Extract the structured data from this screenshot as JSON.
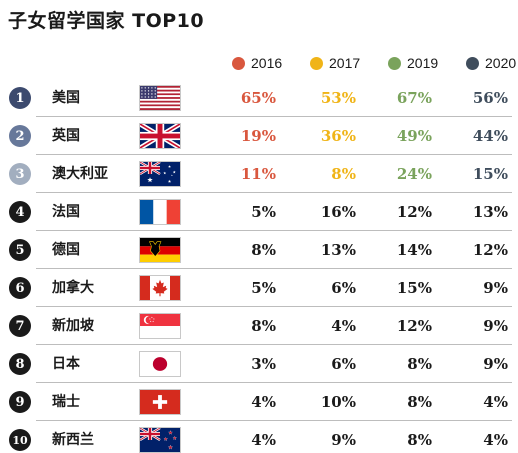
{
  "chart_data": {
    "type": "table",
    "title": "子女留学国家 TOP10",
    "series": [
      {
        "name": "2016",
        "color": "#d9573e",
        "values": [
          65,
          19,
          11,
          5,
          8,
          5,
          8,
          3,
          4,
          4
        ]
      },
      {
        "name": "2017",
        "color": "#f0b417",
        "values": [
          53,
          36,
          8,
          16,
          13,
          6,
          4,
          6,
          10,
          9
        ]
      },
      {
        "name": "2019",
        "color": "#7aa35c",
        "values": [
          67,
          49,
          24,
          12,
          14,
          15,
          12,
          8,
          8,
          8
        ]
      },
      {
        "name": "2020",
        "color": "#3f4d5c",
        "values": [
          56,
          44,
          15,
          13,
          12,
          9,
          9,
          9,
          4,
          4
        ]
      }
    ],
    "rows": [
      {
        "rank": "1",
        "country": "美国",
        "flag": "us-flag",
        "highlight": true
      },
      {
        "rank": "2",
        "country": "英国",
        "flag": "uk-flag",
        "highlight": true
      },
      {
        "rank": "3",
        "country": "澳大利亚",
        "flag": "australia-flag",
        "highlight": true
      },
      {
        "rank": "4",
        "country": "法国",
        "flag": "france-flag",
        "highlight": false
      },
      {
        "rank": "5",
        "country": "德国",
        "flag": "germany-flag",
        "highlight": false
      },
      {
        "rank": "6",
        "country": "加拿大",
        "flag": "canada-flag",
        "highlight": false
      },
      {
        "rank": "7",
        "country": "新加坡",
        "flag": "singapore-flag",
        "highlight": false
      },
      {
        "rank": "8",
        "country": "日本",
        "flag": "japan-flag",
        "highlight": false
      },
      {
        "rank": "9",
        "country": "瑞士",
        "flag": "switzerland-flag",
        "highlight": false
      },
      {
        "rank": "10",
        "country": "新西兰",
        "flag": "new-zealand-flag",
        "highlight": false
      }
    ],
    "value_suffix": "%",
    "rank_colors": [
      "#3c4a6e",
      "#67789a",
      "#a2aebf",
      "#1a1a1a"
    ],
    "default_text_color": "#1a1a1a"
  }
}
